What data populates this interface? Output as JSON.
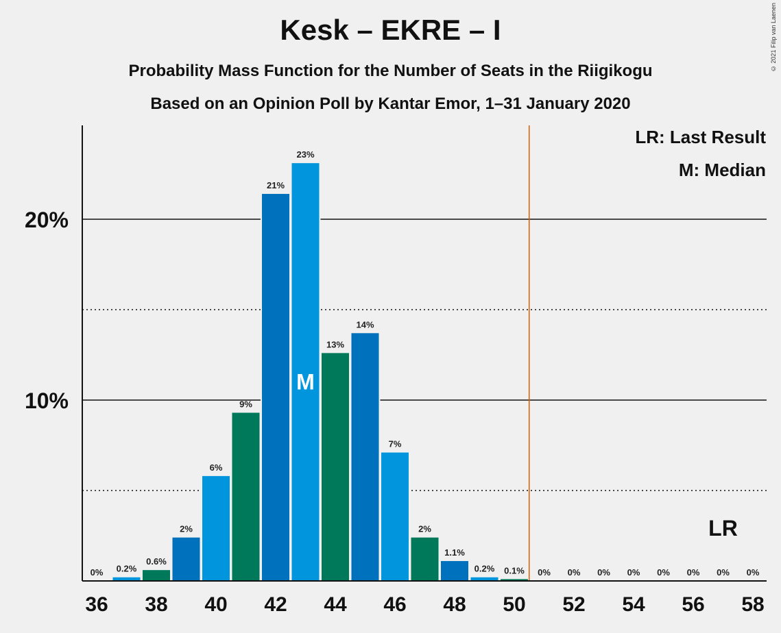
{
  "title": "Kesk – EKRE – I",
  "subtitle1": "Probability Mass Function for the Number of Seats in the Riigikogu",
  "subtitle2": "Based on an Opinion Poll by Kantar Emor, 1–31 January 2020",
  "copyright": "© 2021 Filip van Laenen",
  "legend": {
    "last_result": "LR: Last Result",
    "median": "M: Median"
  },
  "colors": {
    "blue_dark": "#0071bc",
    "blue_light": "#0095dc",
    "green": "#00785a",
    "last_result_line": "#e55b00"
  },
  "chart_data": {
    "type": "bar",
    "x": [
      36,
      37,
      38,
      39,
      40,
      41,
      42,
      43,
      44,
      45,
      46,
      47,
      48,
      49,
      50,
      51,
      52,
      53,
      54,
      55,
      56,
      57,
      58
    ],
    "values": [
      0,
      0.2,
      0.6,
      2.4,
      5.8,
      9.3,
      21.4,
      23.1,
      12.6,
      13.7,
      7.1,
      2.4,
      1.1,
      0.2,
      0.1,
      0,
      0,
      0,
      0,
      0,
      0,
      0,
      0
    ],
    "data_labels": [
      "0%",
      "0.2%",
      "0.6%",
      "2%",
      "6%",
      "9%",
      "21%",
      "23%",
      "13%",
      "14%",
      "7%",
      "2%",
      "1.1%",
      "0.2%",
      "0.1%",
      "0%",
      "0%",
      "0%",
      "0%",
      "0%",
      "0%",
      "0%",
      "0%"
    ],
    "x_tick_labels": [
      "36",
      "38",
      "40",
      "42",
      "44",
      "46",
      "48",
      "50",
      "52",
      "54",
      "56",
      "58"
    ],
    "y_tick_labels": [
      "10%",
      "20%"
    ],
    "ylim": [
      0,
      25
    ],
    "gridlines_solid": [
      10,
      20
    ],
    "gridlines_dotted": [
      5,
      15
    ],
    "median": 43,
    "median_label": "M",
    "last_result": 57,
    "last_result_label": "LR",
    "majority_line": 50.5
  }
}
